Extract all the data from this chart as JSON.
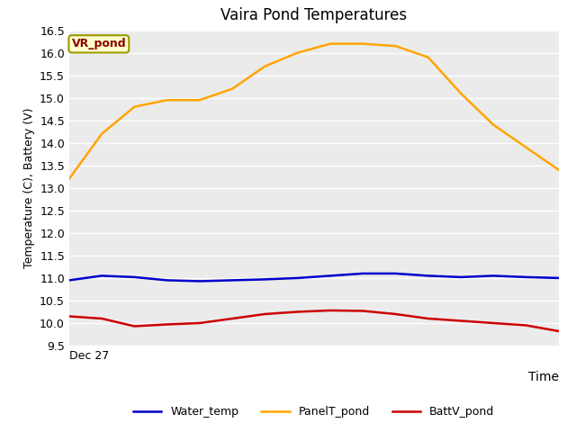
{
  "title": "Vaira Pond Temperatures",
  "xlabel": "Time",
  "ylabel": "Temperature (C), Battery (V)",
  "annotation_text": "VR_pond",
  "annotation_box_color": "#ffffcc",
  "annotation_text_color": "#8b0000",
  "ylim": [
    9.5,
    16.5
  ],
  "x_tick_label": "Dec 27",
  "background_color": "#ebebeb",
  "figure_background": "#ffffff",
  "water_temp": [
    10.95,
    11.05,
    11.02,
    10.95,
    10.93,
    10.95,
    10.97,
    11.0,
    11.05,
    11.1,
    11.1,
    11.05,
    11.02,
    11.05,
    11.02,
    11.0
  ],
  "panel_temp": [
    13.2,
    14.2,
    14.8,
    14.95,
    14.95,
    15.2,
    15.7,
    16.0,
    16.2,
    16.2,
    16.15,
    15.9,
    15.1,
    14.4,
    13.9,
    13.4
  ],
  "batt_temp": [
    10.15,
    10.1,
    9.93,
    9.97,
    10.0,
    10.1,
    10.2,
    10.25,
    10.28,
    10.27,
    10.2,
    10.1,
    10.05,
    10.0,
    9.95,
    9.82
  ],
  "water_color": "#0000cc",
  "panel_color": "#ffa500",
  "batt_color": "#cc0000",
  "legend_labels": [
    "Water_temp",
    "PanelT_pond",
    "BattV_pond"
  ],
  "linewidth": 1.8,
  "yticks": [
    9.5,
    10.0,
    10.5,
    11.0,
    11.5,
    12.0,
    12.5,
    13.0,
    13.5,
    14.0,
    14.5,
    15.0,
    15.5,
    16.0,
    16.5
  ]
}
